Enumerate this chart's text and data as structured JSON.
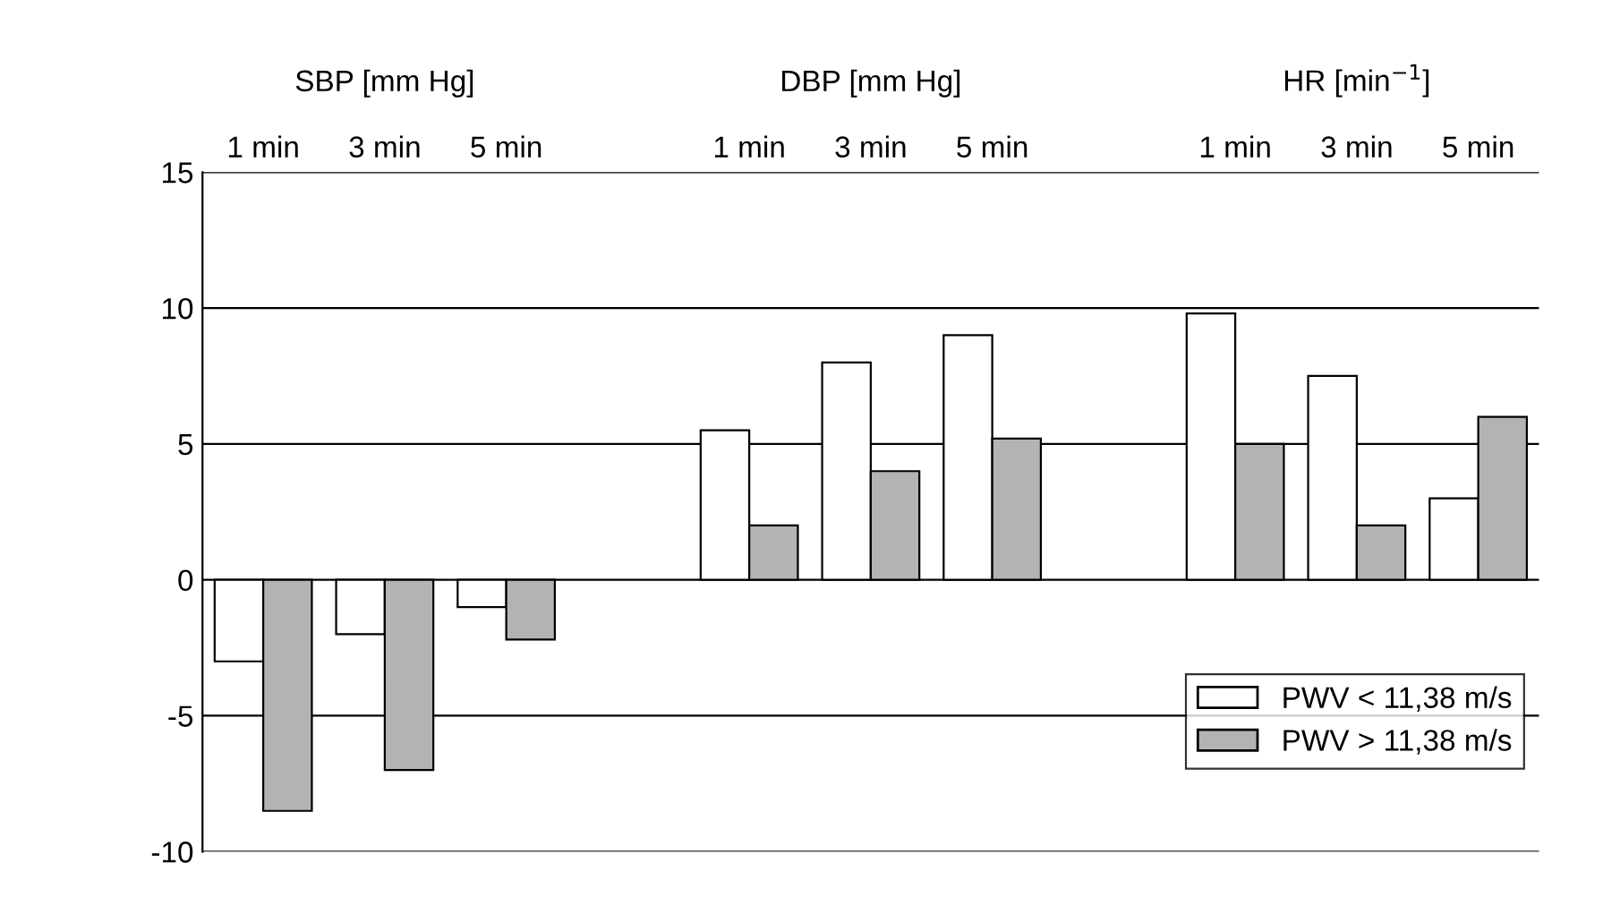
{
  "chart_data": {
    "type": "bar",
    "categories": [
      "1 min",
      "3 min",
      "5 min",
      null,
      "1 min",
      "3 min",
      "5 min",
      null,
      "1 min",
      "3 min",
      "5 min"
    ],
    "series": [
      {
        "name": "PWV < 11,38 m/s",
        "color": "#ffffff",
        "values": [
          -3,
          -2,
          -1,
          null,
          5.5,
          8,
          9,
          null,
          9.8,
          7.5,
          3
        ]
      },
      {
        "name": "PWV > 11,38 m/s",
        "color": "#b3b3b3",
        "values": [
          -8.5,
          -7,
          -2.2,
          null,
          2,
          4,
          5.2,
          null,
          5,
          2,
          6
        ]
      }
    ],
    "annotations": [
      "SBP [mm Hg]",
      "DBP [mm Hg]",
      "HR [min$^{−1}$]"
    ],
    "ylim": [
      -10,
      15
    ],
    "yticks": [
      -10,
      -5,
      0,
      5,
      10,
      15
    ],
    "grid": "y",
    "legend": "bottom right"
  }
}
